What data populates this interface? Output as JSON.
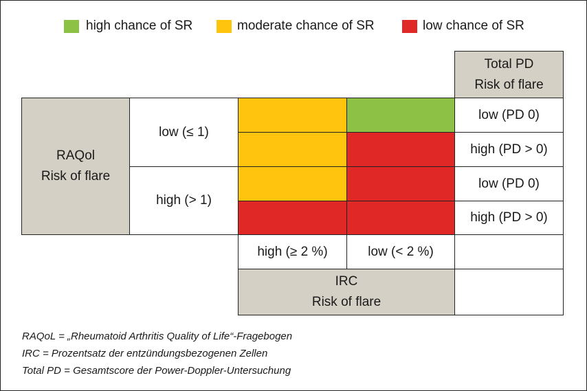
{
  "legend": [
    {
      "label": "high chance of SR",
      "color": "#8dc145"
    },
    {
      "label": "moderate chance of SR",
      "color": "#fec40e"
    },
    {
      "label": "low chance of SR",
      "color": "#e02826"
    }
  ],
  "pd_header": {
    "line1": "Total PD",
    "line2": "Risk of flare"
  },
  "raqol_header": {
    "line1": "RAQol",
    "line2": "Risk of flare"
  },
  "raqol_levels": [
    "low (≤ 1)",
    "high (> 1)"
  ],
  "pd_levels": [
    "low (PD 0)",
    "high (PD > 0)",
    "low (PD 0)",
    "high (PD > 0)"
  ],
  "irc_levels": [
    "high (≥ 2 %)",
    "low (< 2 %)"
  ],
  "irc_header": {
    "line1": "IRC",
    "line2": "Risk of flare"
  },
  "grid": [
    [
      "moderate",
      "high"
    ],
    [
      "moderate",
      "low"
    ],
    [
      "moderate",
      "low"
    ],
    [
      "low",
      "low"
    ]
  ],
  "grid_colors": {
    "high": "#8dc145",
    "moderate": "#fec40e",
    "low": "#e02826"
  },
  "footnotes": [
    "RAQoL = „Rheumatoid Arthritis Quality of Life“-Fragebogen",
    "IRC = Prozentsatz der entzündungsbezogenen Zellen",
    "Total PD = Gesamtscore der Power-Doppler-Untersuchung"
  ]
}
